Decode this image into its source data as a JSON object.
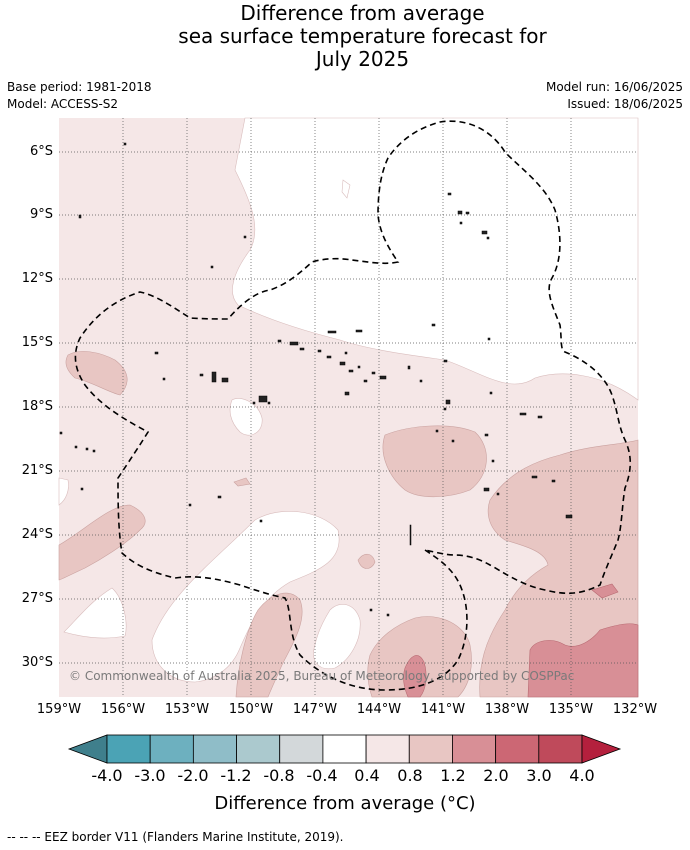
{
  "title": {
    "line1": "Difference from average",
    "line2": "sea surface temperature forecast for",
    "line3": "July 2025"
  },
  "meta": {
    "base_period": "Base period: 1981-2018",
    "model": "Model: ACCESS-S2",
    "model_run": "Model run: 16/06/2025",
    "issued": "Issued: 18/06/2025"
  },
  "axes": {
    "lat_ticks": [
      "6°S",
      "9°S",
      "12°S",
      "15°S",
      "18°S",
      "21°S",
      "24°S",
      "27°S",
      "30°S"
    ],
    "lon_ticks": [
      "159°W",
      "156°W",
      "153°W",
      "150°W",
      "147°W",
      "144°W",
      "141°W",
      "138°W",
      "135°W",
      "132°W"
    ]
  },
  "copyright": "© Commonwealth of Australia 2025, Bureau of Meteorology, supported by COSPPac",
  "colorbar": {
    "labels": [
      "-4.0",
      "-3.0",
      "-2.0",
      "-1.2",
      "-0.8",
      "-0.4",
      "0.4",
      "0.8",
      "1.2",
      "2.0",
      "3.0",
      "4.0"
    ],
    "colors": [
      "#3f7f8c",
      "#4ba3b5",
      "#6db0bf",
      "#8fbdc8",
      "#abc9ce",
      "#d3d8da",
      "#ffffff",
      "#f5e7e7",
      "#e8c6c3",
      "#d88f96",
      "#cc6774",
      "#bf4a5b",
      "#b4203d"
    ],
    "title": "Difference from average (°C)"
  },
  "footnote": "--  --  -- EEZ border V11 (Flanders Marine Institute, 2019)."
}
